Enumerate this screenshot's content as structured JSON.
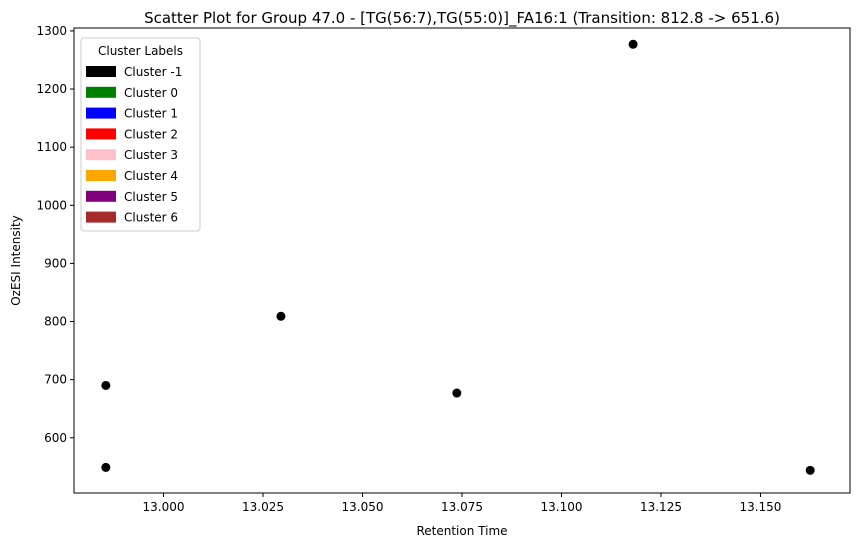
{
  "chart_data": {
    "type": "scatter",
    "title": "Scatter Plot for Group 47.0 - [TG(56:7),TG(55:0)]_FA16:1 (Transition: 812.8 -> 651.6)",
    "xlabel": "Retention Time",
    "ylabel": "OzESI Intensity",
    "xlim": [
      12.9775,
      13.1725
    ],
    "ylim": [
      505,
      1305
    ],
    "xticks": [
      "13.000",
      "13.025",
      "13.050",
      "13.075",
      "13.100",
      "13.125",
      "13.150"
    ],
    "yticks": [
      "600",
      "700",
      "800",
      "900",
      "1000",
      "1100",
      "1200",
      "1300"
    ],
    "grid": false,
    "legend": {
      "title": "Cluster Labels",
      "placement": "top-left",
      "entries": [
        {
          "label": "Cluster -1",
          "color": "#000000"
        },
        {
          "label": "Cluster 0",
          "color": "#008000"
        },
        {
          "label": "Cluster 1",
          "color": "#0000ff"
        },
        {
          "label": "Cluster 2",
          "color": "#ff0000"
        },
        {
          "label": "Cluster 3",
          "color": "#ffc0cb"
        },
        {
          "label": "Cluster 4",
          "color": "#ffa500"
        },
        {
          "label": "Cluster 5",
          "color": "#800080"
        },
        {
          "label": "Cluster 6",
          "color": "#a52a2a"
        }
      ]
    },
    "points": [
      {
        "x": 12.9855,
        "y": 690,
        "cluster": -1
      },
      {
        "x": 12.9855,
        "y": 549,
        "cluster": -1
      },
      {
        "x": 13.0295,
        "y": 809,
        "cluster": -1
      },
      {
        "x": 13.0737,
        "y": 677,
        "cluster": -1
      },
      {
        "x": 13.118,
        "y": 1277,
        "cluster": -1
      },
      {
        "x": 13.1625,
        "y": 544,
        "cluster": -1
      }
    ],
    "point_color": "#000000"
  }
}
